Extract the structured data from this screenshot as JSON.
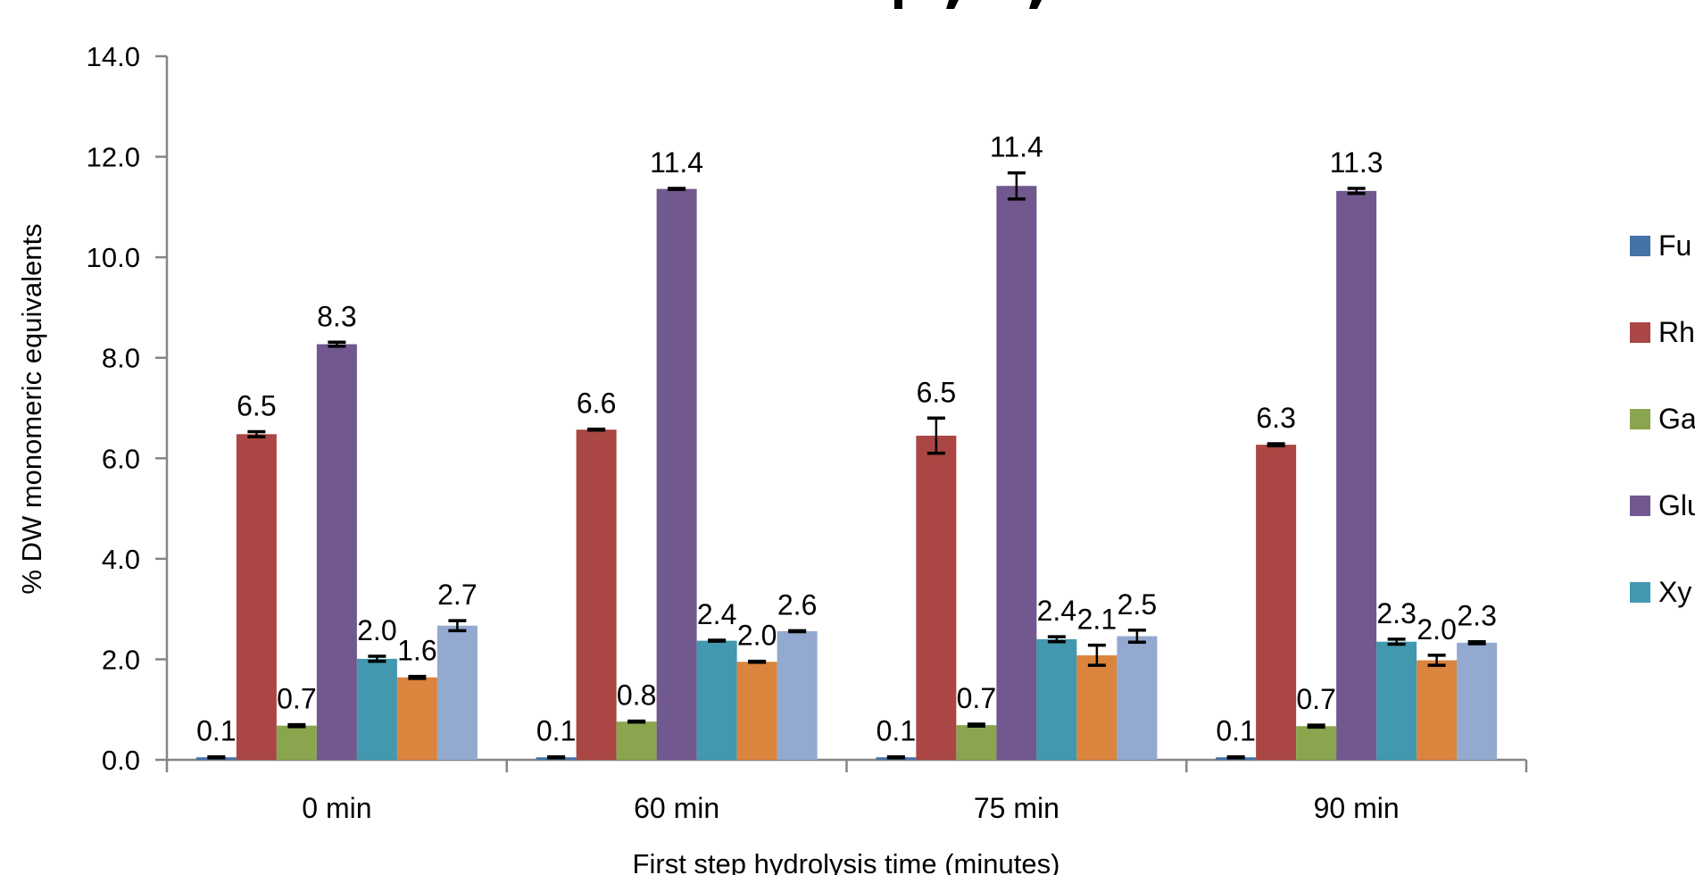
{
  "chart_data": {
    "type": "bar",
    "title": "",
    "xlabel": "First step hydrolysis time (minutes)",
    "ylabel": "% DW monomeric equivalents",
    "ylim": [
      0,
      14
    ],
    "y_ticks": [
      "0.0",
      "2.0",
      "4.0",
      "6.0",
      "8.0",
      "10.0",
      "12.0",
      "14.0"
    ],
    "y_tick_values": [
      0,
      2,
      4,
      6,
      8,
      10,
      12,
      14
    ],
    "grid": false,
    "legend_position": "right",
    "categories": [
      "0 min",
      "60 min",
      "75 min",
      "90 min"
    ],
    "series": [
      {
        "name": "Fu",
        "color": "#4572A7",
        "values": [
          0.05,
          0.05,
          0.05,
          0.05
        ],
        "labels": [
          "0.1",
          "0.1",
          "0.1",
          "0.1"
        ],
        "errors": [
          0.01,
          0.01,
          0.01,
          0.01
        ]
      },
      {
        "name": "Rh",
        "color": "#AA4643",
        "values": [
          6.48,
          6.57,
          6.45,
          6.27
        ],
        "labels": [
          "6.5",
          "6.6",
          "6.5",
          "6.3"
        ],
        "errors": [
          0.05,
          0.01,
          0.35,
          0.02
        ]
      },
      {
        "name": "Ga",
        "color": "#89A54E",
        "values": [
          0.68,
          0.76,
          0.69,
          0.67
        ],
        "labels": [
          "0.7",
          "0.8",
          "0.7",
          "0.7"
        ],
        "errors": [
          0.02,
          0.01,
          0.02,
          0.02
        ]
      },
      {
        "name": "Glu",
        "color": "#71588F",
        "values": [
          8.27,
          11.36,
          11.42,
          11.32
        ],
        "labels": [
          "8.3",
          "11.4",
          "11.4",
          "11.3"
        ],
        "errors": [
          0.04,
          0.01,
          0.26,
          0.05
        ]
      },
      {
        "name": "Xy",
        "color": "#4198AF",
        "values": [
          2.01,
          2.37,
          2.4,
          2.35
        ],
        "labels": [
          "2.0",
          "2.4",
          "2.4",
          "2.3"
        ],
        "errors": [
          0.05,
          0.01,
          0.05,
          0.05
        ]
      },
      {
        "name": "",
        "color": "#DB843D",
        "values": [
          1.64,
          1.95,
          2.08,
          1.98
        ],
        "labels": [
          "1.6",
          "2.0",
          "2.1",
          "2.0"
        ],
        "errors": [
          0.02,
          0.01,
          0.2,
          0.1
        ]
      },
      {
        "name": "",
        "color": "#93A9CF",
        "values": [
          2.67,
          2.56,
          2.46,
          2.33
        ],
        "labels": [
          "2.7",
          "2.6",
          "2.5",
          "2.3"
        ],
        "errors": [
          0.1,
          0.01,
          0.12,
          0.02
        ]
      }
    ],
    "legend_visible_entries": [
      "Fu",
      "Rh",
      "Ga",
      "Glu",
      "Xy"
    ],
    "axis_color": "#868686"
  }
}
